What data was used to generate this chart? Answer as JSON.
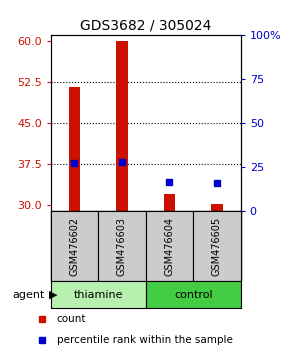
{
  "title": "GDS3682 / 305024",
  "samples": [
    "GSM476602",
    "GSM476603",
    "GSM476604",
    "GSM476605"
  ],
  "count_values": [
    51.5,
    60.0,
    32.0,
    30.2
  ],
  "percentile_values": [
    27.0,
    28.0,
    16.5,
    15.5
  ],
  "ylim_left": [
    29.0,
    61.0
  ],
  "yticks_left": [
    30,
    37.5,
    45,
    52.5,
    60
  ],
  "ylim_right": [
    0,
    100
  ],
  "yticks_right": [
    0,
    25,
    50,
    75,
    100
  ],
  "ytick_labels_right": [
    "0",
    "25",
    "50",
    "75",
    "100%"
  ],
  "groups": [
    {
      "label": "thiamine",
      "samples": [
        0,
        1
      ]
    },
    {
      "label": "control",
      "samples": [
        2,
        3
      ]
    }
  ],
  "bar_color": "#cc1100",
  "dot_color": "#0000cc",
  "bar_width": 0.25,
  "bg_plot": "#ffffff",
  "bg_label_area": "#cccccc",
  "bg_group_light": "#b8f0b0",
  "bg_group_dark": "#44cc44",
  "agent_label": "agent",
  "legend_count_label": "count",
  "legend_pct_label": "percentile rank within the sample",
  "gridline_values": [
    37.5,
    45.0,
    52.5
  ]
}
